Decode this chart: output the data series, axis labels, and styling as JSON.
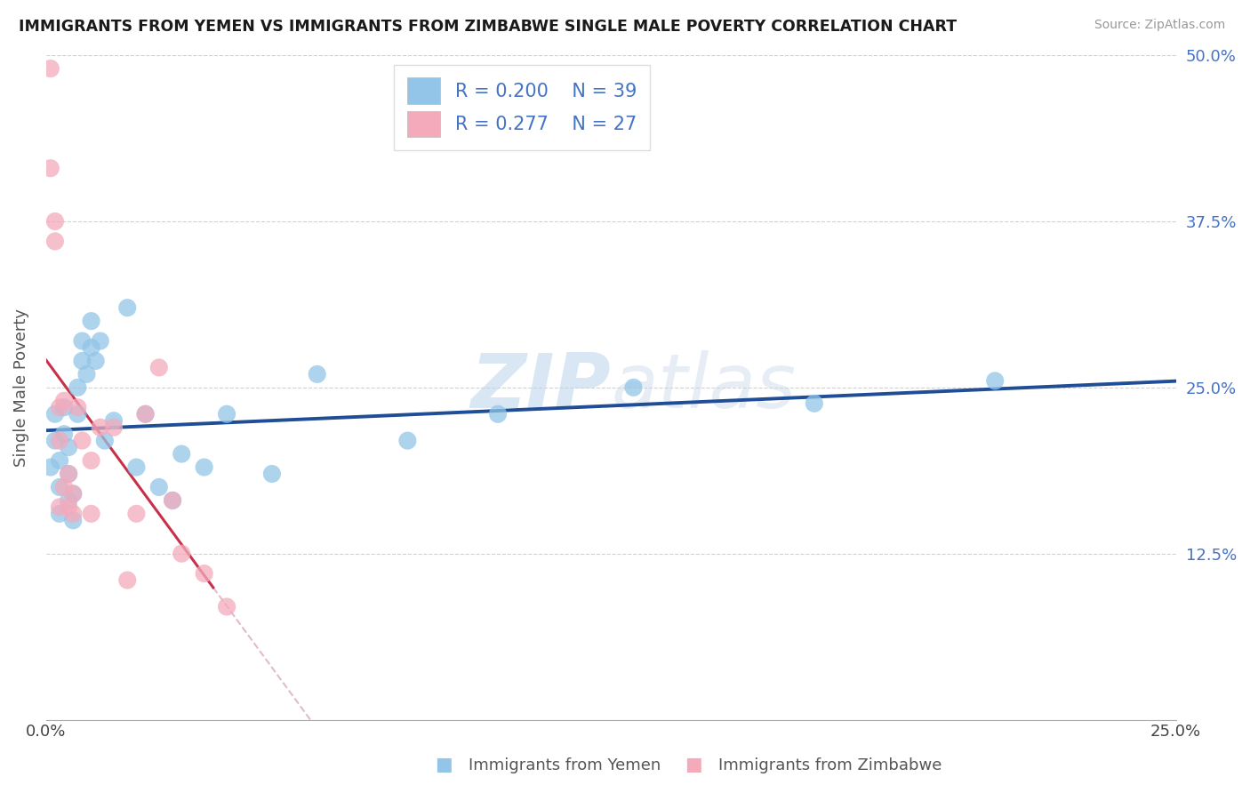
{
  "title": "IMMIGRANTS FROM YEMEN VS IMMIGRANTS FROM ZIMBABWE SINGLE MALE POVERTY CORRELATION CHART",
  "source": "Source: ZipAtlas.com",
  "xlabel_yemen": "Immigrants from Yemen",
  "xlabel_zimbabwe": "Immigrants from Zimbabwe",
  "ylabel": "Single Male Poverty",
  "r_yemen": 0.2,
  "n_yemen": 39,
  "r_zimbabwe": 0.277,
  "n_zimbabwe": 27,
  "color_yemen": "#92C5E8",
  "color_zimbabwe": "#F4AABB",
  "line_color_yemen": "#1F4E96",
  "line_color_zimbabwe": "#C8304A",
  "line_dashed_color": "#D4A0B0",
  "watermark_color": "#C8DDEF",
  "xlim": [
    0.0,
    0.25
  ],
  "ylim": [
    0.0,
    0.5
  ],
  "xticks": [
    0.0,
    0.05,
    0.1,
    0.15,
    0.2,
    0.25
  ],
  "yticks": [
    0.0,
    0.125,
    0.25,
    0.375,
    0.5
  ],
  "ytick_right_labels": [
    "",
    "12.5%",
    "25.0%",
    "37.5%",
    "50.0%"
  ],
  "xtick_labels": [
    "0.0%",
    "",
    "",
    "",
    "",
    "25.0%"
  ],
  "yemen_x": [
    0.001,
    0.002,
    0.002,
    0.003,
    0.003,
    0.003,
    0.004,
    0.004,
    0.005,
    0.005,
    0.005,
    0.006,
    0.006,
    0.007,
    0.007,
    0.008,
    0.008,
    0.009,
    0.01,
    0.01,
    0.011,
    0.012,
    0.013,
    0.015,
    0.018,
    0.02,
    0.022,
    0.03,
    0.035,
    0.04,
    0.06,
    0.08,
    0.1,
    0.13,
    0.17,
    0.21,
    0.025,
    0.028,
    0.05
  ],
  "yemen_y": [
    0.19,
    0.21,
    0.23,
    0.155,
    0.175,
    0.195,
    0.215,
    0.235,
    0.165,
    0.185,
    0.205,
    0.15,
    0.17,
    0.23,
    0.25,
    0.27,
    0.285,
    0.26,
    0.28,
    0.3,
    0.27,
    0.285,
    0.21,
    0.225,
    0.31,
    0.19,
    0.23,
    0.2,
    0.19,
    0.23,
    0.26,
    0.21,
    0.23,
    0.25,
    0.238,
    0.255,
    0.175,
    0.165,
    0.185
  ],
  "zimbabwe_x": [
    0.001,
    0.001,
    0.002,
    0.002,
    0.003,
    0.003,
    0.004,
    0.005,
    0.005,
    0.006,
    0.006,
    0.007,
    0.008,
    0.01,
    0.01,
    0.012,
    0.015,
    0.018,
    0.02,
    0.022,
    0.025,
    0.028,
    0.03,
    0.035,
    0.04,
    0.003,
    0.004
  ],
  "zimbabwe_y": [
    0.49,
    0.415,
    0.375,
    0.36,
    0.235,
    0.21,
    0.24,
    0.16,
    0.185,
    0.155,
    0.17,
    0.235,
    0.21,
    0.195,
    0.155,
    0.22,
    0.22,
    0.105,
    0.155,
    0.23,
    0.265,
    0.165,
    0.125,
    0.11,
    0.085,
    0.16,
    0.175
  ],
  "zim_line_x_start": 0.0,
  "zim_line_x_end_solid": 0.037,
  "zim_line_x_end_dashed": 0.25,
  "yemen_line_x_start": 0.0,
  "yemen_line_x_end": 0.25
}
